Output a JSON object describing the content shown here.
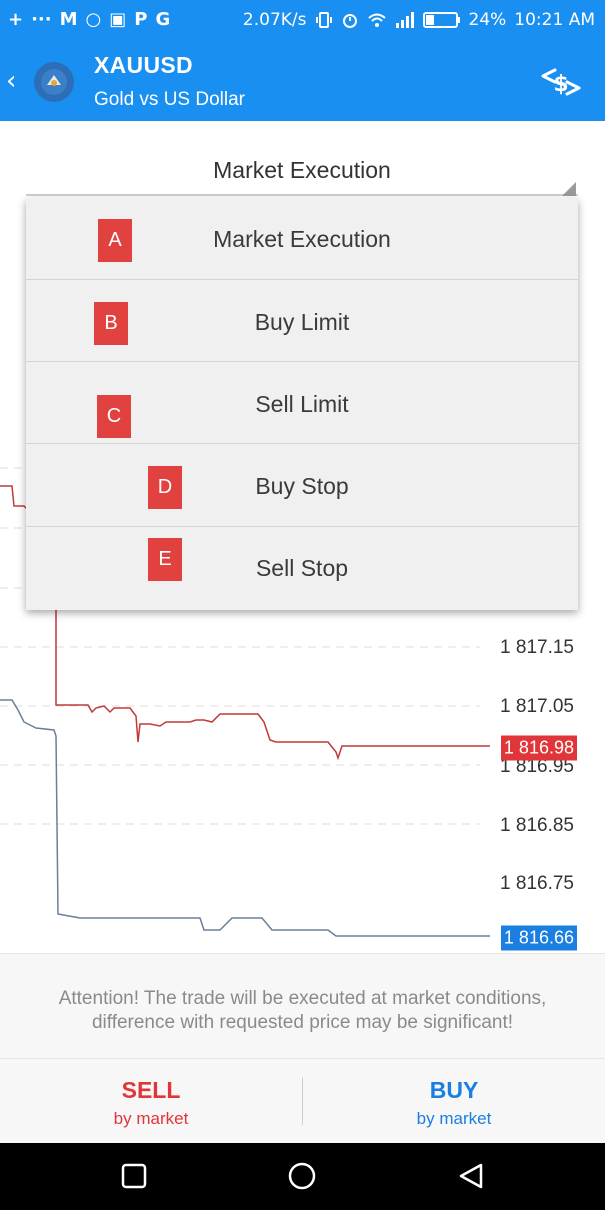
{
  "status_bar": {
    "left_glyphs": [
      "+",
      "···",
      "M",
      "○",
      "▣",
      "P",
      "G"
    ],
    "speed": "2.07K/s",
    "battery": "24%",
    "time": "10:21 AM"
  },
  "app_bar": {
    "symbol": "XAUUSD",
    "description": "Gold vs US Dollar"
  },
  "order_type": {
    "selected": "Market Execution",
    "options": [
      {
        "badge": "A",
        "label": "Market Execution"
      },
      {
        "badge": "B",
        "label": "Buy Limit"
      },
      {
        "badge": "C",
        "label": "Sell Limit"
      },
      {
        "badge": "D",
        "label": "Buy Stop"
      },
      {
        "badge": "E",
        "label": "Sell Stop"
      }
    ]
  },
  "chart": {
    "price_labels": [
      "1 817.15",
      "1 817.05",
      "1 816.95",
      "1 816.85",
      "1 816.75"
    ],
    "ask_price": "1 816.98",
    "bid_price": "1 816.66",
    "colors": {
      "ask": "#e0363a",
      "bid": "#1a7fe0",
      "grid": "#d9d9d9"
    }
  },
  "attention": {
    "line1": "Attention! The trade will be executed at market conditions,",
    "line2": "difference with requested price may be significant!"
  },
  "actions": {
    "sell": {
      "main": "SELL",
      "sub": "by market"
    },
    "buy": {
      "main": "BUY",
      "sub": "by market"
    }
  },
  "colors": {
    "accent": "#1a8ff2",
    "sell": "#e0363a",
    "buy": "#1a7fe0",
    "badge": "#e2423f"
  }
}
